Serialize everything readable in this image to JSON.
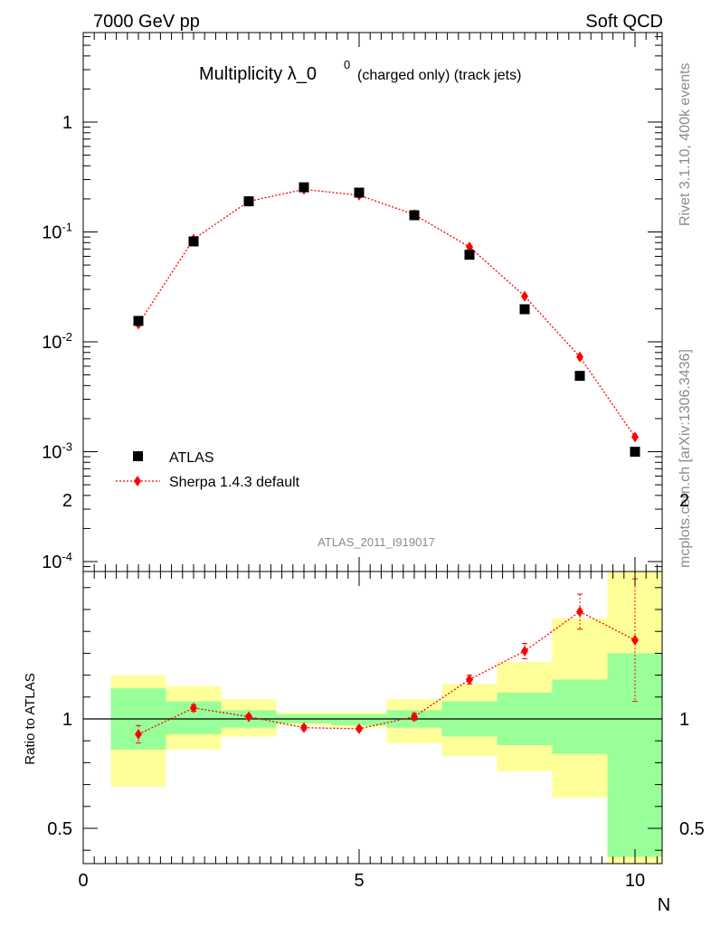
{
  "header": {
    "left": "7000 GeV pp",
    "right": "Soft QCD"
  },
  "title": {
    "main": "Multiplicity λ_0",
    "superscript": "0",
    "sub": "(charged only) (track jets)"
  },
  "side_labels": {
    "rivet": "Rivet 3.1.10,  400k events",
    "mcplots": "mcplots.cern.ch [arXiv:1306.3436]"
  },
  "analysis_label": "ATLAS_2011_I919017",
  "legend": {
    "atlas": "ATLAS",
    "sherpa": "Sherpa 1.4.3 default"
  },
  "ratio_ylabel": "Ratio to ATLAS",
  "xaxis_label": "N",
  "colors": {
    "data_marker": "#000000",
    "mc_line": "#ff0000",
    "band_inner": "#99ff99",
    "band_outer": "#ffff99"
  },
  "chart_data": [
    {
      "type": "scatter",
      "panel": "main",
      "yscale": "log",
      "xlim": [
        0,
        10.5
      ],
      "ylim": [
        8e-05,
        6
      ],
      "x": [
        1,
        2,
        3,
        4,
        5,
        6,
        7,
        8,
        9,
        10
      ],
      "series": [
        {
          "name": "ATLAS",
          "values": [
            0.0155,
            0.082,
            0.19,
            0.255,
            0.228,
            0.142,
            0.062,
            0.0198,
            0.0049,
            0.001
          ]
        },
        {
          "name": "Sherpa 1.4.3 default",
          "values": [
            0.0145,
            0.086,
            0.19,
            0.244,
            0.216,
            0.144,
            0.073,
            0.026,
            0.0073,
            0.00136
          ]
        }
      ],
      "yticks": [
        "10^-4",
        "10^-3",
        "10^-2",
        "10^-1",
        "1"
      ],
      "legend_position": "bottom-left"
    },
    {
      "type": "line",
      "panel": "ratio",
      "xlim": [
        0,
        10.5
      ],
      "ylim": [
        0.35,
        2.35
      ],
      "x": [
        1,
        2,
        3,
        4,
        5,
        6,
        7,
        8,
        9,
        10
      ],
      "ratio": [
        0.93,
        1.05,
        1.01,
        0.96,
        0.955,
        1.01,
        1.18,
        1.31,
        1.49,
        1.36
      ],
      "ratio_err": [
        0.04,
        0.015,
        0.01,
        0.01,
        0.01,
        0.015,
        0.02,
        0.035,
        0.08,
        0.28
      ],
      "band_inner": [
        [
          0.86,
          1.14
        ],
        [
          0.93,
          1.08
        ],
        [
          0.96,
          1.04
        ],
        [
          0.98,
          1.02
        ],
        [
          0.97,
          1.02
        ],
        [
          0.96,
          1.04
        ],
        [
          0.92,
          1.08
        ],
        [
          0.88,
          1.12
        ],
        [
          0.84,
          1.18
        ],
        [
          0.37,
          1.3
        ]
      ],
      "band_outer": [
        [
          0.69,
          1.2
        ],
        [
          0.86,
          1.15
        ],
        [
          0.92,
          1.09
        ],
        [
          0.97,
          1.03
        ],
        [
          0.96,
          1.03
        ],
        [
          0.89,
          1.09
        ],
        [
          0.83,
          1.16
        ],
        [
          0.76,
          1.26
        ],
        [
          0.64,
          1.46
        ],
        [
          0.34,
          2.03
        ]
      ],
      "yticks": [
        "0.5",
        "1",
        "2"
      ],
      "xticks": [
        "0",
        "5",
        "10"
      ]
    }
  ]
}
